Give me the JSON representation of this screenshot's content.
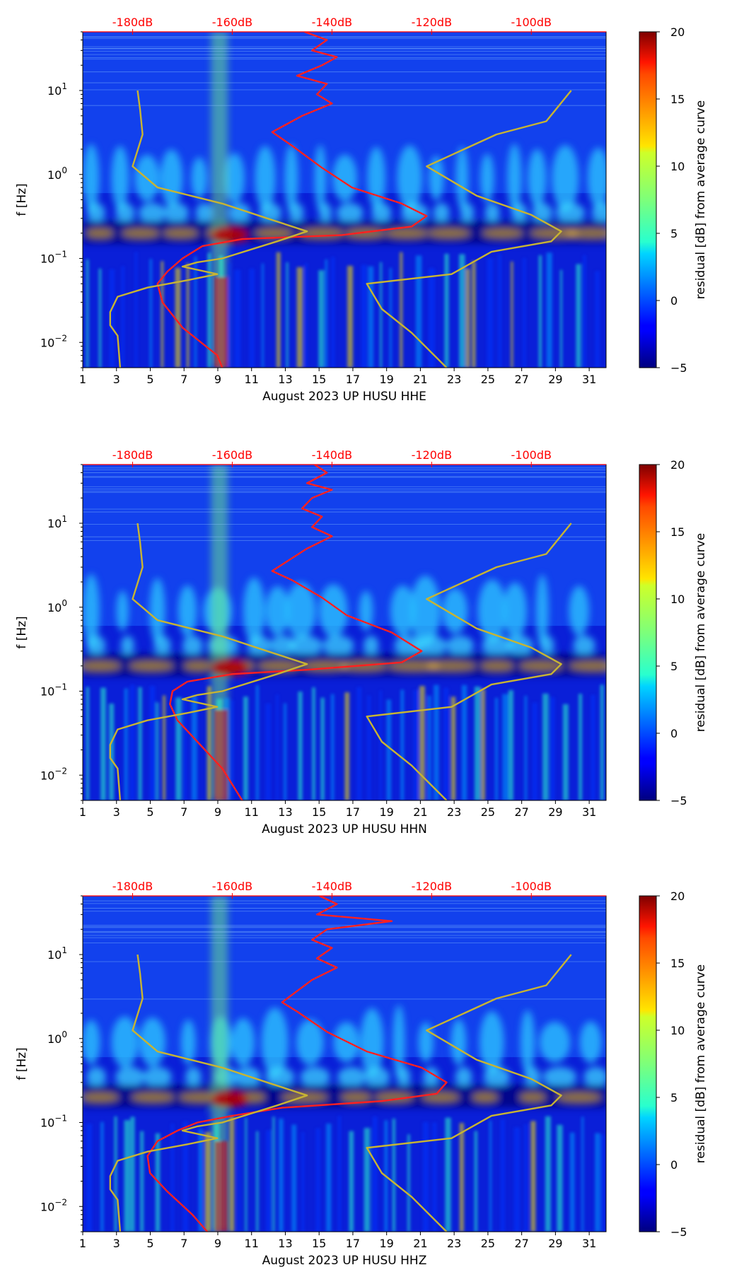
{
  "chart_data": [
    {
      "type": "heatmap",
      "id": "hhe",
      "xlabel": "August 2023 UP HUSU  HHE",
      "ylabel": "f [Hz]",
      "x_range": [
        1,
        32
      ],
      "x_ticks": [
        1,
        3,
        5,
        7,
        9,
        11,
        13,
        15,
        17,
        19,
        21,
        23,
        25,
        27,
        29,
        31
      ],
      "y_range": [
        0.005,
        50
      ],
      "y_scale": "log",
      "y_ticks": [
        {
          "value": 0.01,
          "label": "10",
          "exp": "−2"
        },
        {
          "value": 0.1,
          "label": "10",
          "exp": "−1"
        },
        {
          "value": 1,
          "label": "10",
          "exp": "0"
        },
        {
          "value": 10,
          "label": "10",
          "exp": "1"
        }
      ],
      "top_axis": {
        "color": "#ff0000",
        "range_db": [
          -190,
          -85
        ],
        "ticks": [
          {
            "value": -180,
            "label": "-180dB"
          },
          {
            "value": -160,
            "label": "-160dB"
          },
          {
            "value": -140,
            "label": "-140dB"
          },
          {
            "value": -120,
            "label": "-120dB"
          },
          {
            "value": -100,
            "label": "-100dB"
          }
        ]
      },
      "colorbar": {
        "label": "residual [dB] from average curve",
        "range": [
          -5,
          20
        ],
        "ticks": [
          {
            "value": 20,
            "label": "20"
          },
          {
            "value": 15,
            "label": "15"
          },
          {
            "value": 10,
            "label": "10"
          },
          {
            "value": 5,
            "label": "5"
          },
          {
            "value": 0,
            "label": "0"
          },
          {
            "value": -5,
            "label": "−5"
          }
        ]
      },
      "series": [
        {
          "color": "#ff2020",
          "points": [
            [
              -145.5,
              50
            ],
            [
              -141,
              40
            ],
            [
              -144,
              30
            ],
            [
              -139,
              25
            ],
            [
              -142,
              20
            ],
            [
              -147,
              15
            ],
            [
              -141,
              12
            ],
            [
              -143,
              9
            ],
            [
              -140,
              7
            ],
            [
              -146,
              5
            ],
            [
              -152,
              3.2
            ],
            [
              -148,
              2.2
            ],
            [
              -142,
              1.2
            ],
            [
              -136,
              0.7
            ],
            [
              -126,
              0.45
            ],
            [
              -121,
              0.32
            ],
            [
              -124,
              0.24
            ],
            [
              -138,
              0.19
            ],
            [
              -158,
              0.17
            ],
            [
              -166,
              0.14
            ],
            [
              -170,
              0.1
            ],
            [
              -173,
              0.07
            ],
            [
              -175,
              0.05
            ],
            [
              -174,
              0.03
            ],
            [
              -170,
              0.015
            ],
            [
              -163,
              0.007
            ],
            [
              -162,
              0.005
            ]
          ]
        },
        {
          "color": "#c8b432",
          "points": [
            [
              -182.5,
              0.005
            ],
            [
              -183,
              0.012
            ],
            [
              -184.5,
              0.016
            ],
            [
              -184.5,
              0.023
            ],
            [
              -183,
              0.035
            ],
            [
              -177,
              0.045
            ],
            [
              -169,
              0.055
            ],
            [
              -163,
              0.065
            ],
            [
              -170,
              0.08
            ],
            [
              -167,
              0.09
            ],
            [
              -162,
              0.1
            ],
            [
              -151,
              0.16
            ],
            [
              -145,
              0.21
            ],
            [
              -153,
              0.3
            ],
            [
              -162,
              0.45
            ],
            [
              -175,
              0.7
            ],
            [
              -180,
              1.25
            ],
            [
              -178,
              3
            ],
            [
              -178.5,
              6
            ],
            [
              -179,
              10
            ]
          ]
        },
        {
          "color": "#c8b432",
          "points": [
            [
              -117,
              0.005
            ],
            [
              -124,
              0.013
            ],
            [
              -130,
              0.025
            ],
            [
              -133,
              0.05
            ],
            [
              -116,
              0.065
            ],
            [
              -108,
              0.12
            ],
            [
              -96,
              0.16
            ],
            [
              -94,
              0.21
            ],
            [
              -100,
              0.33
            ],
            [
              -111,
              0.56
            ],
            [
              -121,
              1.25
            ],
            [
              -107,
              3
            ],
            [
              -97,
              4.3
            ],
            [
              -92,
              10
            ]
          ]
        }
      ]
    },
    {
      "type": "heatmap",
      "id": "hhn",
      "xlabel": "August 2023 UP HUSU  HHN",
      "ylabel": "f [Hz]",
      "x_range": [
        1,
        32
      ],
      "x_ticks": [
        1,
        3,
        5,
        7,
        9,
        11,
        13,
        15,
        17,
        19,
        21,
        23,
        25,
        27,
        29,
        31
      ],
      "y_range": [
        0.005,
        50
      ],
      "y_scale": "log",
      "y_ticks": [
        {
          "value": 0.01,
          "label": "10",
          "exp": "−2"
        },
        {
          "value": 0.1,
          "label": "10",
          "exp": "−1"
        },
        {
          "value": 1,
          "label": "10",
          "exp": "0"
        },
        {
          "value": 10,
          "label": "10",
          "exp": "1"
        }
      ],
      "top_axis": {
        "color": "#ff0000",
        "range_db": [
          -190,
          -85
        ],
        "ticks": [
          {
            "value": -180,
            "label": "-180dB"
          },
          {
            "value": -160,
            "label": "-160dB"
          },
          {
            "value": -140,
            "label": "-140dB"
          },
          {
            "value": -120,
            "label": "-120dB"
          },
          {
            "value": -100,
            "label": "-100dB"
          }
        ]
      },
      "colorbar": {
        "label": "residual [dB] from average curve",
        "range": [
          -5,
          20
        ],
        "ticks": [
          {
            "value": 20,
            "label": "20"
          },
          {
            "value": 15,
            "label": "15"
          },
          {
            "value": 10,
            "label": "10"
          },
          {
            "value": 5,
            "label": "5"
          },
          {
            "value": 0,
            "label": "0"
          },
          {
            "value": -5,
            "label": "−5"
          }
        ]
      },
      "series": [
        {
          "color": "#ff2020",
          "points": [
            [
              -143.5,
              50
            ],
            [
              -141,
              40
            ],
            [
              -145,
              30
            ],
            [
              -140,
              25
            ],
            [
              -144,
              20
            ],
            [
              -146,
              15
            ],
            [
              -142,
              12
            ],
            [
              -144,
              9
            ],
            [
              -140,
              7
            ],
            [
              -145,
              5
            ],
            [
              -152,
              2.7
            ],
            [
              -148,
              2.1
            ],
            [
              -142,
              1.3
            ],
            [
              -137,
              0.8
            ],
            [
              -128,
              0.5
            ],
            [
              -122,
              0.3
            ],
            [
              -126,
              0.22
            ],
            [
              -145,
              0.18
            ],
            [
              -160,
              0.16
            ],
            [
              -169,
              0.13
            ],
            [
              -172,
              0.1
            ],
            [
              -172.5,
              0.07
            ],
            [
              -171,
              0.045
            ],
            [
              -167,
              0.025
            ],
            [
              -162,
              0.012
            ],
            [
              -158,
              0.005
            ]
          ]
        },
        {
          "color": "#c8b432",
          "points": [
            [
              -182.5,
              0.005
            ],
            [
              -183,
              0.012
            ],
            [
              -184.5,
              0.016
            ],
            [
              -184.5,
              0.023
            ],
            [
              -183,
              0.035
            ],
            [
              -177,
              0.045
            ],
            [
              -169,
              0.055
            ],
            [
              -163,
              0.065
            ],
            [
              -170,
              0.08
            ],
            [
              -167,
              0.09
            ],
            [
              -162,
              0.1
            ],
            [
              -151,
              0.16
            ],
            [
              -145,
              0.21
            ],
            [
              -153,
              0.3
            ],
            [
              -162,
              0.45
            ],
            [
              -175,
              0.7
            ],
            [
              -180,
              1.25
            ],
            [
              -178,
              3
            ],
            [
              -178.5,
              6
            ],
            [
              -179,
              10
            ]
          ]
        },
        {
          "color": "#c8b432",
          "points": [
            [
              -117,
              0.005
            ],
            [
              -124,
              0.013
            ],
            [
              -130,
              0.025
            ],
            [
              -133,
              0.05
            ],
            [
              -116,
              0.065
            ],
            [
              -108,
              0.12
            ],
            [
              -96,
              0.16
            ],
            [
              -94,
              0.21
            ],
            [
              -100,
              0.33
            ],
            [
              -111,
              0.56
            ],
            [
              -121,
              1.25
            ],
            [
              -107,
              3
            ],
            [
              -97,
              4.3
            ],
            [
              -92,
              10
            ]
          ]
        }
      ]
    },
    {
      "type": "heatmap",
      "id": "hhz",
      "xlabel": "August 2023 UP HUSU  HHZ",
      "ylabel": "f [Hz]",
      "x_range": [
        1,
        32
      ],
      "x_ticks": [
        1,
        3,
        5,
        7,
        9,
        11,
        13,
        15,
        17,
        19,
        21,
        23,
        25,
        27,
        29,
        31
      ],
      "y_range": [
        0.005,
        50
      ],
      "y_scale": "log",
      "y_ticks": [
        {
          "value": 0.01,
          "label": "10",
          "exp": "−2"
        },
        {
          "value": 0.1,
          "label": "10",
          "exp": "−1"
        },
        {
          "value": 1,
          "label": "10",
          "exp": "0"
        },
        {
          "value": 10,
          "label": "10",
          "exp": "1"
        }
      ],
      "top_axis": {
        "color": "#ff0000",
        "range_db": [
          -190,
          -85
        ],
        "ticks": [
          {
            "value": -180,
            "label": "-180dB"
          },
          {
            "value": -160,
            "label": "-160dB"
          },
          {
            "value": -140,
            "label": "-140dB"
          },
          {
            "value": -120,
            "label": "-120dB"
          },
          {
            "value": -100,
            "label": "-100dB"
          }
        ]
      },
      "colorbar": {
        "label": "residual [dB] from average curve",
        "range": [
          -5,
          20
        ],
        "ticks": [
          {
            "value": 20,
            "label": "20"
          },
          {
            "value": 15,
            "label": "15"
          },
          {
            "value": 10,
            "label": "10"
          },
          {
            "value": 5,
            "label": "5"
          },
          {
            "value": 0,
            "label": "0"
          },
          {
            "value": -5,
            "label": "−5"
          }
        ]
      },
      "series": [
        {
          "color": "#ff2020",
          "points": [
            [
              -142.5,
              50
            ],
            [
              -139,
              40
            ],
            [
              -143,
              30
            ],
            [
              -128,
              25
            ],
            [
              -141,
              20
            ],
            [
              -144,
              15
            ],
            [
              -140,
              12
            ],
            [
              -143,
              9
            ],
            [
              -139,
              7
            ],
            [
              -144,
              5
            ],
            [
              -150,
              2.7
            ],
            [
              -147,
              2.1
            ],
            [
              -141,
              1.2
            ],
            [
              -133,
              0.7
            ],
            [
              -122,
              0.45
            ],
            [
              -117,
              0.3
            ],
            [
              -119,
              0.22
            ],
            [
              -130,
              0.18
            ],
            [
              -150,
              0.15
            ],
            [
              -160,
              0.12
            ],
            [
              -167,
              0.1
            ],
            [
              -171,
              0.08
            ],
            [
              -175,
              0.06
            ],
            [
              -177,
              0.04
            ],
            [
              -176.5,
              0.025
            ],
            [
              -173,
              0.015
            ],
            [
              -168,
              0.008
            ],
            [
              -165,
              0.005
            ]
          ]
        },
        {
          "color": "#c8b432",
          "points": [
            [
              -182.5,
              0.005
            ],
            [
              -183,
              0.012
            ],
            [
              -184.5,
              0.016
            ],
            [
              -184.5,
              0.023
            ],
            [
              -183,
              0.035
            ],
            [
              -177,
              0.045
            ],
            [
              -169,
              0.055
            ],
            [
              -163,
              0.065
            ],
            [
              -170,
              0.08
            ],
            [
              -167,
              0.09
            ],
            [
              -162,
              0.1
            ],
            [
              -151,
              0.16
            ],
            [
              -145,
              0.21
            ],
            [
              -153,
              0.3
            ],
            [
              -162,
              0.45
            ],
            [
              -175,
              0.7
            ],
            [
              -180,
              1.25
            ],
            [
              -178,
              3
            ],
            [
              -178.5,
              6
            ],
            [
              -179,
              10
            ]
          ]
        },
        {
          "color": "#c8b432",
          "points": [
            [
              -117,
              0.005
            ],
            [
              -124,
              0.013
            ],
            [
              -130,
              0.025
            ],
            [
              -133,
              0.05
            ],
            [
              -116,
              0.065
            ],
            [
              -108,
              0.12
            ],
            [
              -96,
              0.16
            ],
            [
              -94,
              0.21
            ],
            [
              -100,
              0.33
            ],
            [
              -111,
              0.56
            ],
            [
              -121,
              1.25
            ],
            [
              -107,
              3
            ],
            [
              -97,
              4.3
            ],
            [
              -92,
              10
            ]
          ]
        }
      ]
    }
  ]
}
